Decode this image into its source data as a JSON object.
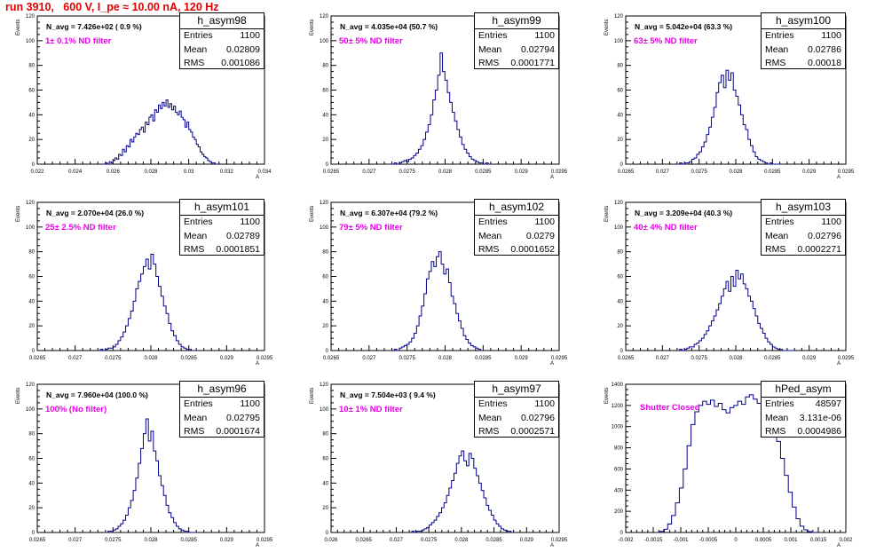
{
  "run_title": "run 3910,   600 V, I_pe ≈ 10.00 nA, 120 Hz",
  "colors": {
    "histogram": "#00008b",
    "filter_text": "#e800e8",
    "title": "#e00000"
  },
  "stat_labels": {
    "entries": "Entries",
    "mean": "Mean",
    "rms": "RMS"
  },
  "panels": [
    {
      "hist_name": "h_asym98",
      "n_avg": "N_avg = 7.426e+02 ( 0.9 %)",
      "filter": "1± 0.1% ND filter",
      "entries": "1100",
      "mean": "0.02809",
      "rms": "0.001086",
      "y_title": "Events",
      "x_title": "A",
      "xlim": [
        0.022,
        0.034
      ],
      "ylim": [
        0,
        120
      ],
      "x_ticks": [
        "0.022",
        "0.024",
        "0.026",
        "0.028",
        "0.03",
        "0.032",
        "0.034"
      ],
      "y_ticks": [
        "0",
        "20",
        "40",
        "60",
        "80",
        "100",
        "120"
      ],
      "chart_data": {
        "type": "histogram",
        "xlim": [
          0.022,
          0.034
        ],
        "ylim": [
          0,
          120
        ],
        "edges_x": [
          0.0255,
          0.0315
        ],
        "counts": [
          0,
          1,
          0,
          2,
          1,
          3,
          5,
          4,
          8,
          7,
          12,
          10,
          15,
          14,
          20,
          18,
          22,
          25,
          24,
          28,
          30,
          26,
          34,
          32,
          38,
          40,
          35,
          44,
          42,
          48,
          45,
          50,
          47,
          52,
          46,
          49,
          44,
          47,
          42,
          40,
          43,
          38,
          36,
          30,
          34,
          28,
          26,
          22,
          20,
          16,
          14,
          10,
          8,
          6,
          5,
          3,
          2,
          1,
          1,
          0
        ]
      }
    },
    {
      "hist_name": "h_asym99",
      "n_avg": "N_avg = 4.035e+04 (50.7 %)",
      "filter": "50± 5% ND filter",
      "entries": "1100",
      "mean": "0.02794",
      "rms": "0.0001771",
      "y_title": "Events",
      "x_title": "A",
      "xlim": [
        0.0265,
        0.0295
      ],
      "ylim": [
        0,
        120
      ],
      "x_ticks": [
        "0.0265",
        "0.027",
        "0.0275",
        "0.028",
        "0.0285",
        "0.029",
        "0.0295"
      ],
      "y_ticks": [
        "0",
        "20",
        "40",
        "60",
        "80",
        "100",
        "120"
      ],
      "chart_data": {
        "type": "histogram",
        "xlim": [
          0.0265,
          0.0295
        ],
        "ylim": [
          0,
          120
        ],
        "edges_x": [
          0.0273,
          0.0286
        ],
        "counts": [
          0,
          1,
          0,
          1,
          2,
          3,
          2,
          4,
          5,
          7,
          9,
          12,
          15,
          20,
          26,
          32,
          40,
          52,
          60,
          72,
          90,
          75,
          68,
          58,
          50,
          42,
          35,
          28,
          22,
          16,
          12,
          9,
          6,
          4,
          3,
          2,
          1,
          1,
          0,
          1,
          0
        ]
      }
    },
    {
      "hist_name": "h_asym100",
      "n_avg": "N_avg = 5.042e+04 (63.3 %)",
      "filter": "63± 5% ND filter",
      "entries": "1100",
      "mean": "0.02786",
      "rms": "0.00018",
      "y_title": "Events",
      "x_title": "A",
      "xlim": [
        0.0265,
        0.0295
      ],
      "ylim": [
        0,
        120
      ],
      "x_ticks": [
        "0.0265",
        "0.027",
        "0.0275",
        "0.028",
        "0.0285",
        "0.029",
        "0.0295"
      ],
      "y_ticks": [
        "0",
        "20",
        "40",
        "60",
        "80",
        "100",
        "120"
      ],
      "chart_data": {
        "type": "histogram",
        "xlim": [
          0.0265,
          0.0295
        ],
        "ylim": [
          0,
          120
        ],
        "edges_x": [
          0.0272,
          0.0286
        ],
        "counts": [
          0,
          1,
          0,
          1,
          1,
          2,
          4,
          5,
          8,
          10,
          14,
          18,
          24,
          30,
          38,
          46,
          58,
          66,
          72,
          62,
          76,
          68,
          74,
          60,
          55,
          48,
          40,
          32,
          28,
          20,
          15,
          10,
          6,
          4,
          3,
          2,
          1,
          0,
          1,
          0,
          0,
          0
        ]
      }
    },
    {
      "hist_name": "h_asym101",
      "n_avg": "N_avg = 2.070e+04 (26.0 %)",
      "filter": "25± 2.5% ND filter",
      "entries": "1100",
      "mean": "0.02789",
      "rms": "0.0001851",
      "y_title": "Events",
      "x_title": "A",
      "xlim": [
        0.0265,
        0.0295
      ],
      "ylim": [
        0,
        120
      ],
      "x_ticks": [
        "0.0265",
        "0.027",
        "0.0275",
        "0.028",
        "0.0285",
        "0.029",
        "0.0295"
      ],
      "y_ticks": [
        "0",
        "20",
        "40",
        "60",
        "80",
        "100",
        "120"
      ],
      "chart_data": {
        "type": "histogram",
        "xlim": [
          0.0265,
          0.0295
        ],
        "ylim": [
          0,
          120
        ],
        "edges_x": [
          0.0273,
          0.0286
        ],
        "counts": [
          0,
          1,
          0,
          1,
          2,
          2,
          3,
          5,
          8,
          11,
          15,
          20,
          26,
          32,
          40,
          50,
          56,
          62,
          68,
          74,
          66,
          78,
          70,
          60,
          52,
          44,
          36,
          30,
          22,
          16,
          12,
          8,
          5,
          3,
          2,
          1,
          1,
          0,
          0
        ]
      }
    },
    {
      "hist_name": "h_asym102",
      "n_avg": "N_avg = 6.307e+04 (79.2 %)",
      "filter": "79± 5% ND filter",
      "entries": "1100",
      "mean": "0.0279",
      "rms": "0.0001652",
      "y_title": "Events",
      "x_title": "A",
      "xlim": [
        0.0265,
        0.0295
      ],
      "ylim": [
        0,
        120
      ],
      "x_ticks": [
        "0.0265",
        "0.027",
        "0.0275",
        "0.028",
        "0.0285",
        "0.029",
        "0.0295"
      ],
      "y_ticks": [
        "0",
        "20",
        "40",
        "60",
        "80",
        "100",
        "120"
      ],
      "chart_data": {
        "type": "histogram",
        "xlim": [
          0.0265,
          0.0295
        ],
        "ylim": [
          0,
          120
        ],
        "edges_x": [
          0.0273,
          0.0285
        ],
        "counts": [
          0,
          1,
          0,
          2,
          3,
          4,
          5,
          7,
          10,
          14,
          20,
          28,
          36,
          46,
          58,
          64,
          72,
          68,
          76,
          80,
          70,
          62,
          66,
          55,
          44,
          38,
          30,
          24,
          18,
          12,
          9,
          6,
          4,
          3,
          2,
          1,
          0
        ]
      }
    },
    {
      "hist_name": "h_asym103",
      "n_avg": "N_avg = 3.209e+04 (40.3 %)",
      "filter": "40± 4% ND filter",
      "entries": "1100",
      "mean": "0.02796",
      "rms": "0.0002271",
      "y_title": "Events",
      "x_title": "A",
      "xlim": [
        0.0265,
        0.0295
      ],
      "ylim": [
        0,
        120
      ],
      "x_ticks": [
        "0.0265",
        "0.027",
        "0.0275",
        "0.028",
        "0.0285",
        "0.029",
        "0.0295"
      ],
      "y_ticks": [
        "0",
        "20",
        "40",
        "60",
        "80",
        "100",
        "120"
      ],
      "chart_data": {
        "type": "histogram",
        "xlim": [
          0.0265,
          0.0295
        ],
        "ylim": [
          0,
          120
        ],
        "edges_x": [
          0.0272,
          0.0288
        ],
        "counts": [
          0,
          1,
          0,
          1,
          2,
          3,
          3,
          5,
          6,
          8,
          10,
          13,
          16,
          20,
          24,
          28,
          33,
          38,
          44,
          50,
          56,
          48,
          60,
          52,
          65,
          58,
          62,
          54,
          50,
          44,
          40,
          34,
          28,
          22,
          18,
          14,
          10,
          7,
          5,
          3,
          2,
          1,
          1,
          0,
          0,
          0,
          0,
          0
        ]
      }
    },
    {
      "hist_name": "h_asym96",
      "n_avg": "N_avg = 7.960e+04 (100.0 %)",
      "filter": "100% (No filter)",
      "entries": "1100",
      "mean": "0.02795",
      "rms": "0.0001674",
      "y_title": "Events",
      "x_title": "A",
      "xlim": [
        0.0265,
        0.0295
      ],
      "ylim": [
        0,
        120
      ],
      "x_ticks": [
        "0.0265",
        "0.027",
        "0.0275",
        "0.028",
        "0.0285",
        "0.029",
        "0.0295"
      ],
      "y_ticks": [
        "0",
        "20",
        "40",
        "60",
        "80",
        "100",
        "120"
      ],
      "chart_data": {
        "type": "histogram",
        "xlim": [
          0.0265,
          0.0295
        ],
        "ylim": [
          0,
          120
        ],
        "edges_x": [
          0.0274,
          0.0286
        ],
        "counts": [
          0,
          1,
          1,
          2,
          3,
          5,
          7,
          10,
          14,
          20,
          26,
          34,
          44,
          56,
          68,
          80,
          92,
          74,
          82,
          66,
          58,
          46,
          38,
          30,
          22,
          16,
          12,
          8,
          5,
          3,
          2,
          1,
          1,
          0,
          0,
          0
        ]
      }
    },
    {
      "hist_name": "h_asym97",
      "n_avg": "N_avg = 7.504e+03 ( 9.4 %)",
      "filter": "10± 1% ND filter",
      "entries": "1100",
      "mean": "0.02796",
      "rms": "0.0002571",
      "y_title": "Events",
      "x_title": "A",
      "xlim": [
        0.026,
        0.0295
      ],
      "ylim": [
        0,
        120
      ],
      "x_ticks": [
        "0.026",
        "0.0265",
        "0.027",
        "0.0275",
        "0.028",
        "0.0285",
        "0.029",
        "0.0295"
      ],
      "y_ticks": [
        "0",
        "20",
        "40",
        "60",
        "80",
        "100",
        "120"
      ],
      "chart_data": {
        "type": "histogram",
        "xlim": [
          0.026,
          0.0295
        ],
        "ylim": [
          0,
          120
        ],
        "edges_x": [
          0.0272,
          0.0288
        ],
        "counts": [
          0,
          1,
          0,
          1,
          1,
          2,
          3,
          4,
          6,
          8,
          10,
          13,
          16,
          20,
          24,
          30,
          36,
          42,
          48,
          56,
          62,
          66,
          58,
          54,
          64,
          60,
          52,
          46,
          40,
          34,
          28,
          22,
          18,
          14,
          10,
          7,
          5,
          3,
          2,
          1,
          1,
          0
        ]
      }
    },
    {
      "hist_name": "hPed_asym",
      "n_avg": "",
      "filter": "Shutter Closed",
      "entries": "48597",
      "mean": "3.131e-06",
      "rms": "0.0004986",
      "y_title": "Events",
      "x_title": "A",
      "xlim": [
        -0.002,
        0.002
      ],
      "ylim": [
        0,
        1400
      ],
      "x_ticks": [
        "-0.002",
        "-0.0015",
        "-0.001",
        "-0.0005",
        "0",
        "0.0005",
        "0.001",
        "0.0015",
        "0.002"
      ],
      "y_ticks": [
        "0",
        "200",
        "400",
        "600",
        "800",
        "1000",
        "1200",
        "1400"
      ],
      "chart_data": {
        "type": "histogram",
        "xlim": [
          -0.002,
          0.002
        ],
        "ylim": [
          0,
          1400
        ],
        "edges_x": [
          -0.00145,
          0.00145
        ],
        "counts": [
          0,
          10,
          30,
          80,
          160,
          280,
          420,
          600,
          820,
          1020,
          1140,
          1200,
          1240,
          1210,
          1250,
          1190,
          1220,
          1160,
          1130,
          1180,
          1200,
          1240,
          1210,
          1280,
          1300,
          1260,
          1220,
          1180,
          1130,
          1080,
          980,
          860,
          700,
          540,
          380,
          240,
          130,
          60,
          25,
          8,
          0
        ]
      }
    }
  ]
}
